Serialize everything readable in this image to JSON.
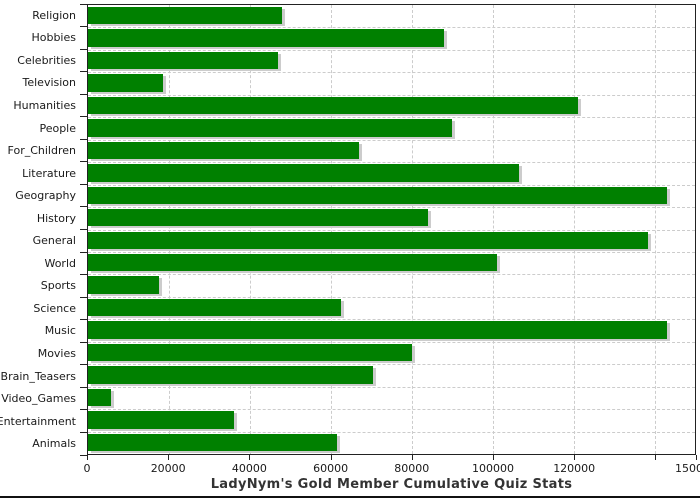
{
  "title": "LadyNym's Gold Member Cumulative Quiz Stats",
  "colors": {
    "bar": "#008000",
    "bar_shadow": "#cccccc",
    "grid": "#cccccc",
    "axis": "#222222",
    "title_text": "#333333",
    "label_text": "#1a1a1a",
    "background": "#ffffff",
    "window_bottom_border": "#111111"
  },
  "chart_data": {
    "type": "bar",
    "orientation": "horizontal",
    "title": "LadyNym's Gold Member Cumulative Quiz Stats",
    "xlabel": "",
    "ylabel": "",
    "categories": [
      "Religion",
      "Hobbies",
      "Celebrities",
      "Television",
      "Humanities",
      "People",
      "For_Children",
      "Literature",
      "Geography",
      "History",
      "General",
      "World",
      "Sports",
      "Science",
      "Music",
      "Movies",
      "Brain_Teasers",
      "Video_Games",
      "Entertainment",
      "Animals"
    ],
    "values": [
      48000,
      88000,
      47000,
      18500,
      121000,
      90000,
      67000,
      106500,
      143000,
      84000,
      138500,
      101000,
      17500,
      62500,
      143000,
      80000,
      70500,
      5700,
      36000,
      61500
    ],
    "xlim": [
      0,
      150000
    ],
    "x_ticks": [
      0,
      20000,
      40000,
      60000,
      80000,
      100000,
      120000,
      140000,
      150000
    ],
    "x_tick_labels": [
      "0",
      "20000",
      "40000",
      "60000",
      "80000",
      "100000",
      "120000",
      "",
      "150000"
    ],
    "grid": true,
    "grid_style": "dashed",
    "legend": false,
    "bar_color": "#008000",
    "title_position": "bottom"
  }
}
